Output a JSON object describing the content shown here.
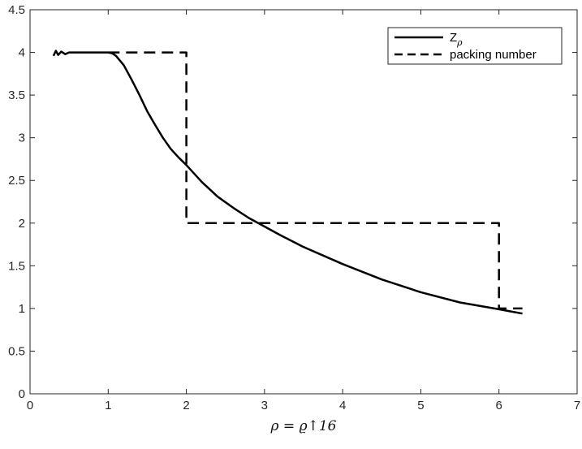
{
  "chart_data": {
    "type": "line",
    "title": "",
    "xlabel": "ρ = ϱ↑16",
    "ylabel": "",
    "xlim": [
      0,
      7
    ],
    "ylim": [
      0,
      4.5
    ],
    "xticks": [
      "0",
      "1",
      "2",
      "3",
      "4",
      "5",
      "6",
      "7"
    ],
    "yticks": [
      "0",
      "0.5",
      "1",
      "1.5",
      "2",
      "2.5",
      "3",
      "3.5",
      "4",
      "4.5"
    ],
    "grid": false,
    "legend_position": "top-right",
    "series": [
      {
        "name": "Z",
        "name_subscript": "ρ",
        "style": "solid",
        "color": "#000000",
        "x": [
          0.3,
          0.33,
          0.36,
          0.4,
          0.45,
          0.5,
          0.6,
          0.7,
          0.8,
          0.9,
          1.0,
          1.05,
          1.1,
          1.2,
          1.3,
          1.4,
          1.5,
          1.6,
          1.7,
          1.8,
          1.9,
          2.0,
          2.2,
          2.4,
          2.6,
          2.8,
          3.0,
          3.2,
          3.5,
          4.0,
          4.5,
          5.0,
          5.5,
          6.0,
          6.3
        ],
        "y": [
          3.96,
          4.02,
          3.97,
          4.01,
          3.98,
          4.0,
          4.0,
          4.0,
          4.0,
          4.0,
          4.0,
          3.99,
          3.96,
          3.85,
          3.68,
          3.5,
          3.31,
          3.15,
          3.0,
          2.87,
          2.77,
          2.68,
          2.48,
          2.31,
          2.18,
          2.06,
          1.96,
          1.86,
          1.72,
          1.52,
          1.34,
          1.19,
          1.07,
          0.99,
          0.94
        ]
      },
      {
        "name": "packing number",
        "style": "dashed",
        "color": "#000000",
        "x": [
          1.0,
          2.0,
          2.0,
          6.0,
          6.0,
          6.3
        ],
        "y": [
          4.0,
          4.0,
          2.0,
          2.0,
          1.0,
          1.0
        ]
      }
    ]
  }
}
